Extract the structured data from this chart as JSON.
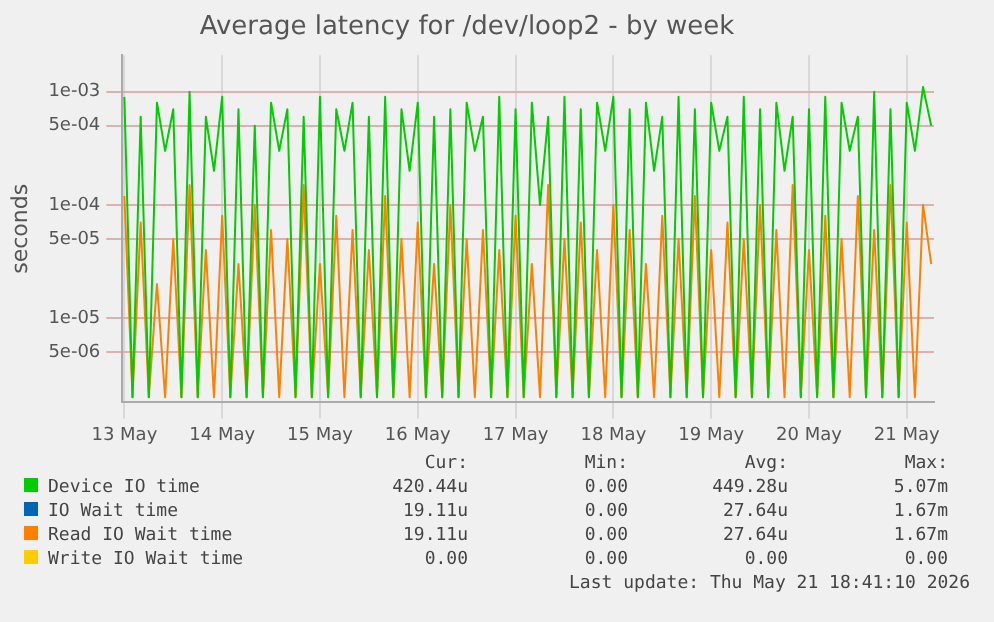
{
  "chart_data": {
    "type": "line",
    "title": "Average latency for /dev/loop2 - by week",
    "ylabel": "seconds",
    "log": true,
    "grid": true,
    "legend": "bottom",
    "xlim": [
      "2026-05-13T11:30",
      "2026-05-21T18:41"
    ],
    "xticks": [
      {
        "value": "2026-05-13T12:00",
        "label": "13 May"
      },
      {
        "value": "2026-05-14T12:00",
        "label": "14 May"
      },
      {
        "value": "2026-05-15T12:00",
        "label": "15 May"
      },
      {
        "value": "2026-05-16T12:00",
        "label": "16 May"
      },
      {
        "value": "2026-05-17T12:00",
        "label": "17 May"
      },
      {
        "value": "2026-05-18T12:00",
        "label": "18 May"
      },
      {
        "value": "2026-05-19T12:00",
        "label": "19 May"
      },
      {
        "value": "2026-05-20T12:00",
        "label": "20 May"
      },
      {
        "value": "2026-05-21T12:00",
        "label": "21 May"
      }
    ],
    "ylim": [
      1.8e-06,
      0.0021
    ],
    "yticks": [
      {
        "value": 5e-06,
        "label": "5e-06"
      },
      {
        "value": 1e-05,
        "label": "1e-05"
      },
      {
        "value": 5e-05,
        "label": "5e-05"
      },
      {
        "value": 0.0001,
        "label": "1e-04"
      },
      {
        "value": 0.0005,
        "label": "5e-04"
      },
      {
        "value": 0.001,
        "label": "1e-03"
      }
    ],
    "x": [
      "2026-05-13T12:00",
      "2026-05-13T14:00",
      "2026-05-13T16:00",
      "2026-05-13T18:00",
      "2026-05-13T20:00",
      "2026-05-13T22:00",
      "2026-05-14T00:00",
      "2026-05-14T02:00",
      "2026-05-14T04:00",
      "2026-05-14T06:00",
      "2026-05-14T08:00",
      "2026-05-14T10:00",
      "2026-05-14T12:00",
      "2026-05-14T14:00",
      "2026-05-14T16:00",
      "2026-05-14T18:00",
      "2026-05-14T20:00",
      "2026-05-14T22:00",
      "2026-05-15T00:00",
      "2026-05-15T02:00",
      "2026-05-15T04:00",
      "2026-05-15T06:00",
      "2026-05-15T08:00",
      "2026-05-15T10:00",
      "2026-05-15T12:00",
      "2026-05-15T14:00",
      "2026-05-15T16:00",
      "2026-05-15T18:00",
      "2026-05-15T20:00",
      "2026-05-15T22:00",
      "2026-05-16T00:00",
      "2026-05-16T02:00",
      "2026-05-16T04:00",
      "2026-05-16T06:00",
      "2026-05-16T08:00",
      "2026-05-16T10:00",
      "2026-05-16T12:00",
      "2026-05-16T14:00",
      "2026-05-16T16:00",
      "2026-05-16T18:00",
      "2026-05-16T20:00",
      "2026-05-16T22:00",
      "2026-05-17T00:00",
      "2026-05-17T02:00",
      "2026-05-17T04:00",
      "2026-05-17T06:00",
      "2026-05-17T08:00",
      "2026-05-17T10:00",
      "2026-05-17T12:00",
      "2026-05-17T14:00",
      "2026-05-17T16:00",
      "2026-05-17T18:00",
      "2026-05-17T20:00",
      "2026-05-17T22:00",
      "2026-05-18T00:00",
      "2026-05-18T02:00",
      "2026-05-18T04:00",
      "2026-05-18T06:00",
      "2026-05-18T08:00",
      "2026-05-18T10:00",
      "2026-05-18T12:00",
      "2026-05-18T14:00",
      "2026-05-18T16:00",
      "2026-05-18T18:00",
      "2026-05-18T20:00",
      "2026-05-18T22:00",
      "2026-05-19T00:00",
      "2026-05-19T02:00",
      "2026-05-19T04:00",
      "2026-05-19T06:00",
      "2026-05-19T08:00",
      "2026-05-19T10:00",
      "2026-05-19T12:00",
      "2026-05-19T14:00",
      "2026-05-19T16:00",
      "2026-05-19T18:00",
      "2026-05-19T20:00",
      "2026-05-19T22:00",
      "2026-05-20T00:00",
      "2026-05-20T02:00",
      "2026-05-20T04:00",
      "2026-05-20T06:00",
      "2026-05-20T08:00",
      "2026-05-20T10:00",
      "2026-05-20T12:00",
      "2026-05-20T14:00",
      "2026-05-20T16:00",
      "2026-05-20T18:00",
      "2026-05-20T20:00",
      "2026-05-20T22:00",
      "2026-05-21T00:00",
      "2026-05-21T02:00",
      "2026-05-21T04:00",
      "2026-05-21T06:00",
      "2026-05-21T08:00",
      "2026-05-21T10:00",
      "2026-05-21T12:00",
      "2026-05-21T14:00",
      "2026-05-21T16:00",
      "2026-05-21T18:00"
    ],
    "series": [
      {
        "name": "Device IO time",
        "color": "#00cc00",
        "values": [
          0.0009,
          2e-06,
          0.0006,
          2e-06,
          0.0008,
          0.0003,
          0.0007,
          2e-06,
          0.001,
          2e-06,
          0.0006,
          0.0002,
          0.0009,
          2e-06,
          0.0007,
          2e-06,
          0.0005,
          2e-06,
          0.0008,
          0.0003,
          0.0007,
          2e-06,
          0.0006,
          2e-06,
          0.0009,
          2e-06,
          0.0007,
          0.0003,
          0.0008,
          2e-06,
          0.0006,
          2e-06,
          0.0009,
          2e-06,
          0.0007,
          0.0002,
          0.0008,
          2e-06,
          0.0006,
          2e-06,
          0.0007,
          2e-06,
          0.0008,
          0.0003,
          0.0006,
          2e-06,
          0.0009,
          2e-06,
          0.0007,
          2e-06,
          0.0008,
          0.0001,
          0.0006,
          2e-06,
          0.0009,
          2e-06,
          0.0007,
          2e-06,
          0.0008,
          0.0003,
          0.0009,
          2e-06,
          0.0007,
          2e-06,
          0.0008,
          0.0002,
          0.0006,
          2e-06,
          0.0009,
          2e-06,
          0.0007,
          2e-06,
          0.0008,
          0.0003,
          0.0006,
          2e-06,
          0.0009,
          2e-06,
          0.0007,
          2e-06,
          0.0008,
          0.0002,
          0.0006,
          2e-06,
          0.0007,
          2e-06,
          0.0009,
          2e-06,
          0.0008,
          0.0003,
          0.0006,
          2e-06,
          0.001,
          2e-06,
          0.0007,
          2e-06,
          0.0008,
          0.0003,
          0.0011,
          0.0005
        ]
      },
      {
        "name": "IO Wait time",
        "color": "#0066b3",
        "values": [
          null,
          null,
          null,
          null,
          null,
          null,
          null,
          null,
          null,
          null,
          null,
          null,
          null,
          null,
          null,
          null,
          null,
          null,
          null,
          null,
          null,
          null,
          null,
          null,
          null,
          null,
          null,
          null,
          null,
          null,
          null,
          null,
          null,
          null,
          null,
          null,
          null,
          null,
          null,
          null,
          null,
          null,
          null,
          null,
          null,
          null,
          null,
          null,
          null,
          null,
          null,
          null,
          null,
          null,
          null,
          null,
          null,
          null,
          null,
          null,
          null,
          null,
          null,
          null,
          null,
          null,
          null,
          null,
          null,
          null,
          null,
          null,
          null,
          null,
          null,
          null,
          null,
          null,
          null,
          null,
          null,
          null,
          null,
          null,
          null,
          null,
          null,
          null,
          null,
          null,
          null,
          null,
          null,
          null,
          null,
          null,
          null,
          null,
          null,
          null
        ]
      },
      {
        "name": "Read IO Wait time",
        "color": "#ff8000",
        "values": [
          0.00012,
          2e-06,
          7e-05,
          2e-06,
          2e-05,
          2e-06,
          5e-05,
          2e-06,
          0.00015,
          2e-06,
          4e-05,
          2e-06,
          8e-05,
          2e-06,
          3e-05,
          2e-06,
          0.0001,
          2e-06,
          6e-05,
          2e-06,
          5e-05,
          2e-06,
          0.00015,
          2e-06,
          3e-05,
          2e-06,
          8e-05,
          2e-06,
          6e-05,
          2e-06,
          4e-05,
          2e-06,
          0.00012,
          2e-06,
          5e-05,
          2e-06,
          7e-05,
          2e-06,
          3e-05,
          2e-06,
          0.0001,
          2e-06,
          5e-05,
          2e-06,
          6e-05,
          2e-06,
          4e-05,
          2e-06,
          8e-05,
          2e-06,
          3e-05,
          2e-06,
          0.00015,
          2e-06,
          5e-05,
          2e-06,
          7e-05,
          2e-06,
          4e-05,
          2e-06,
          0.0001,
          2e-06,
          6e-05,
          2e-06,
          3e-05,
          2e-06,
          8e-05,
          2e-06,
          5e-05,
          2e-06,
          0.00012,
          2e-06,
          4e-05,
          2e-06,
          7e-05,
          2e-06,
          5e-05,
          2e-06,
          0.0001,
          2e-06,
          6e-05,
          2e-06,
          0.00015,
          2e-06,
          4e-05,
          2e-06,
          8e-05,
          2e-06,
          5e-05,
          2e-06,
          0.00012,
          2e-06,
          6e-05,
          2e-06,
          0.00015,
          2e-06,
          7e-05,
          2e-06,
          0.0001,
          3e-05
        ]
      },
      {
        "name": "Write IO Wait time",
        "color": "#ffcc00",
        "values": [
          null,
          null,
          null,
          null,
          null,
          null,
          null,
          null,
          null,
          null,
          null,
          null,
          null,
          null,
          null,
          null,
          null,
          null,
          null,
          null,
          null,
          null,
          null,
          null,
          null,
          null,
          null,
          null,
          null,
          null,
          null,
          null,
          null,
          null,
          null,
          null,
          null,
          null,
          null,
          null,
          null,
          null,
          null,
          null,
          null,
          null,
          null,
          null,
          null,
          null,
          null,
          null,
          null,
          null,
          null,
          null,
          null,
          null,
          null,
          null,
          null,
          null,
          null,
          null,
          null,
          null,
          null,
          null,
          null,
          null,
          null,
          null,
          null,
          null,
          null,
          null,
          null,
          null,
          null,
          null,
          null,
          null,
          null,
          null,
          null,
          null,
          null,
          null,
          null,
          null,
          null,
          null,
          null,
          null,
          null,
          null,
          null,
          null,
          null,
          null
        ]
      }
    ],
    "annotations": [
      "Cur:",
      "Min:",
      "Avg:",
      "Max:",
      "420.44u",
      "0.00",
      "449.28u",
      "5.07m",
      "19.11u",
      "0.00",
      "27.64u",
      "1.67m",
      "19.11u",
      "0.00",
      "27.64u",
      "1.67m",
      "0.00",
      "0.00",
      "0.00",
      "0.00",
      "Last update: Thu May 21 18:41:10 2026"
    ]
  }
}
